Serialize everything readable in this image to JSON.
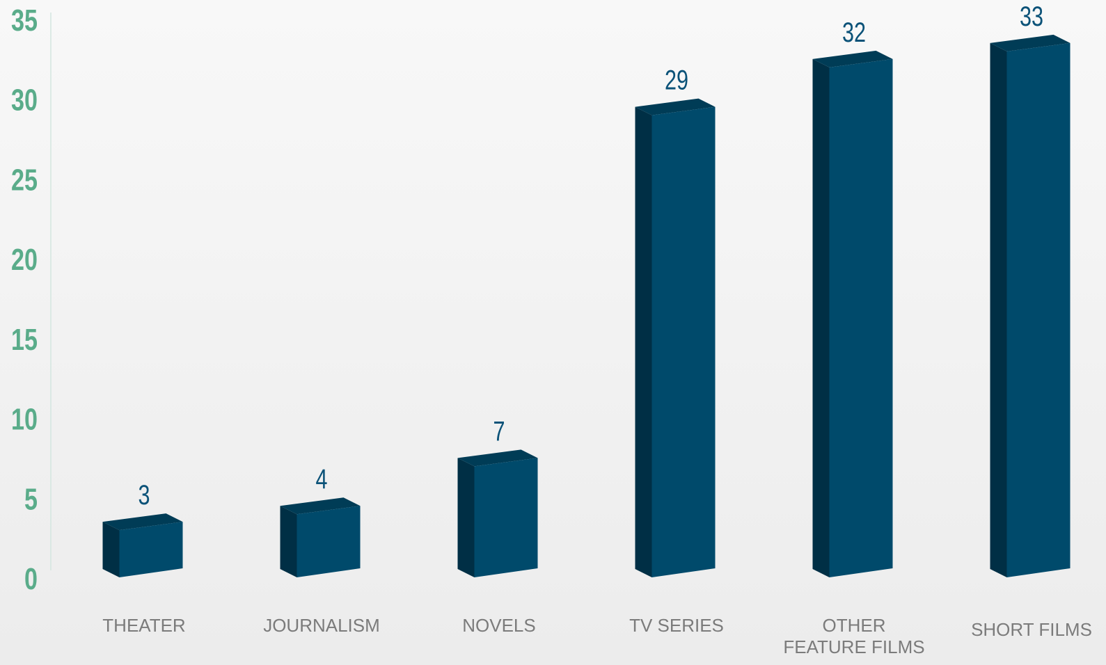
{
  "chart_data": {
    "type": "bar",
    "categories": [
      [
        "THEATER"
      ],
      [
        "JOURNALISM"
      ],
      [
        "NOVELS"
      ],
      [
        "TV SERIES"
      ],
      [
        "OTHER",
        "FEATURE FILMS"
      ],
      [
        "SHORT FILMS"
      ]
    ],
    "values": [
      3,
      4,
      7,
      29,
      32,
      33
    ],
    "ylim": [
      0,
      35
    ],
    "yticks": [
      0,
      5,
      10,
      15,
      20,
      25,
      30,
      35
    ],
    "title": "",
    "xlabel": "",
    "ylabel": "",
    "grid": false,
    "legend": "none",
    "style": "3d-columns"
  },
  "colors": {
    "bar_front": "#004a6b",
    "bar_side": "#002f45",
    "bar_top": "#003c56",
    "value_label": "#0b5278",
    "y_tick": "#5aac8a",
    "x_label": "#7b7b7b",
    "axis_line": "#d3e6df"
  }
}
